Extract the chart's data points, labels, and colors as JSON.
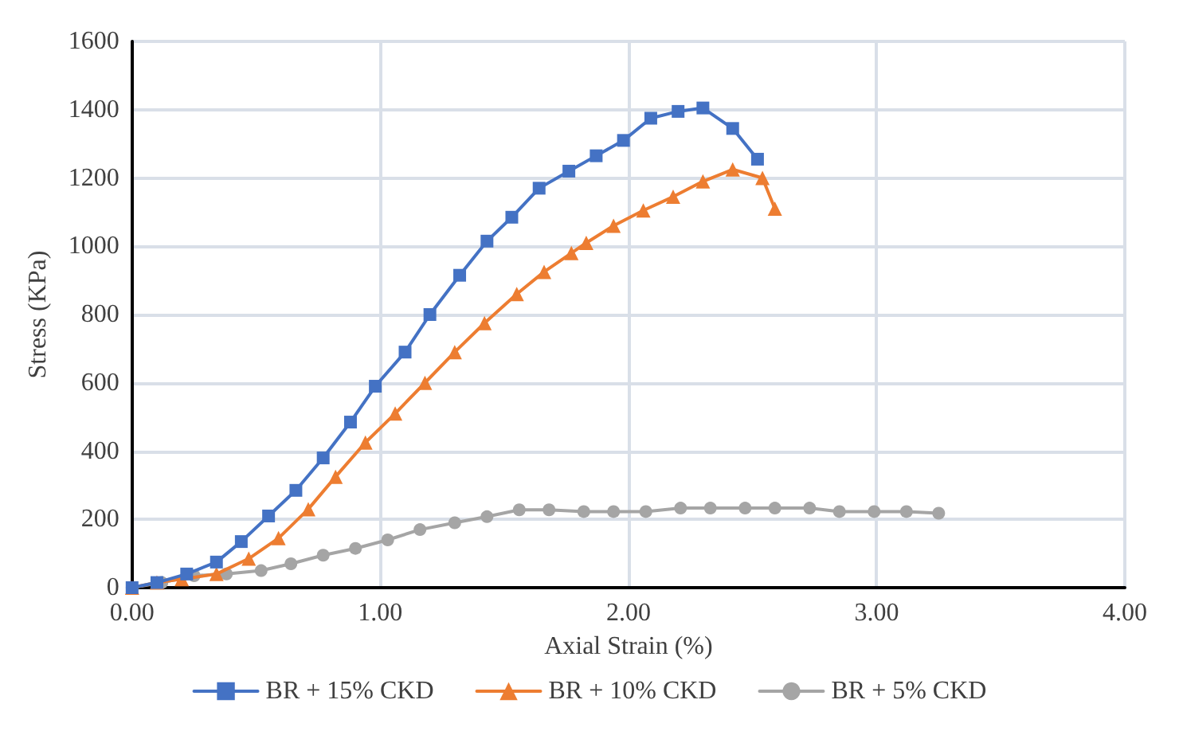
{
  "chart_data": {
    "type": "line",
    "xlabel": "Axial Strain (%)",
    "ylabel": "Stress (KPa)",
    "xlim": [
      0,
      4
    ],
    "xticks": [
      {
        "value": 0,
        "label": "0.00"
      },
      {
        "value": 1,
        "label": "1.00"
      },
      {
        "value": 2,
        "label": "2.00"
      },
      {
        "value": 3,
        "label": "3.00"
      },
      {
        "value": 4,
        "label": "4.00"
      }
    ],
    "ylim": [
      0,
      1600
    ],
    "yticks": [
      0,
      200,
      400,
      600,
      800,
      1000,
      1200,
      1400,
      1600
    ],
    "grid": true,
    "legend": "bottom",
    "series": [
      {
        "name": "BR + 15% CKD",
        "color": "#4472c4",
        "marker": "square",
        "x": [
          0,
          0.1,
          0.22,
          0.34,
          0.44,
          0.55,
          0.66,
          0.77,
          0.88,
          0.98,
          1.1,
          1.2,
          1.32,
          1.43,
          1.53,
          1.64,
          1.76,
          1.87,
          1.98,
          2.09,
          2.2,
          2.3,
          2.42,
          2.52
        ],
        "values": [
          0,
          15,
          40,
          75,
          135,
          210,
          285,
          380,
          485,
          590,
          690,
          800,
          915,
          1015,
          1085,
          1170,
          1220,
          1265,
          1310,
          1375,
          1395,
          1405,
          1345,
          1255
        ]
      },
      {
        "name": "BR + 10% CKD",
        "color": "#ed7d31",
        "marker": "triangle",
        "x": [
          0,
          0.1,
          0.2,
          0.34,
          0.47,
          0.59,
          0.71,
          0.82,
          0.94,
          1.06,
          1.18,
          1.3,
          1.42,
          1.55,
          1.66,
          1.77,
          1.83,
          1.94,
          2.06,
          2.18,
          2.3,
          2.42,
          2.54,
          2.59
        ],
        "values": [
          0,
          15,
          25,
          40,
          85,
          145,
          230,
          325,
          425,
          510,
          600,
          690,
          775,
          860,
          925,
          980,
          1010,
          1060,
          1105,
          1145,
          1190,
          1225,
          1200,
          1110
        ]
      },
      {
        "name": "BR + 5% CKD",
        "color": "#a5a5a5",
        "marker": "circle",
        "x": [
          0,
          0.12,
          0.25,
          0.38,
          0.52,
          0.64,
          0.77,
          0.9,
          1.03,
          1.16,
          1.3,
          1.43,
          1.56,
          1.68,
          1.82,
          1.94,
          2.07,
          2.21,
          2.33,
          2.47,
          2.59,
          2.73,
          2.85,
          2.99,
          3.12,
          3.25
        ],
        "values": [
          0,
          15,
          35,
          40,
          50,
          70,
          95,
          115,
          140,
          170,
          190,
          208,
          228,
          228,
          223,
          223,
          223,
          233,
          233,
          233,
          233,
          233,
          223,
          223,
          223,
          218
        ]
      }
    ]
  }
}
